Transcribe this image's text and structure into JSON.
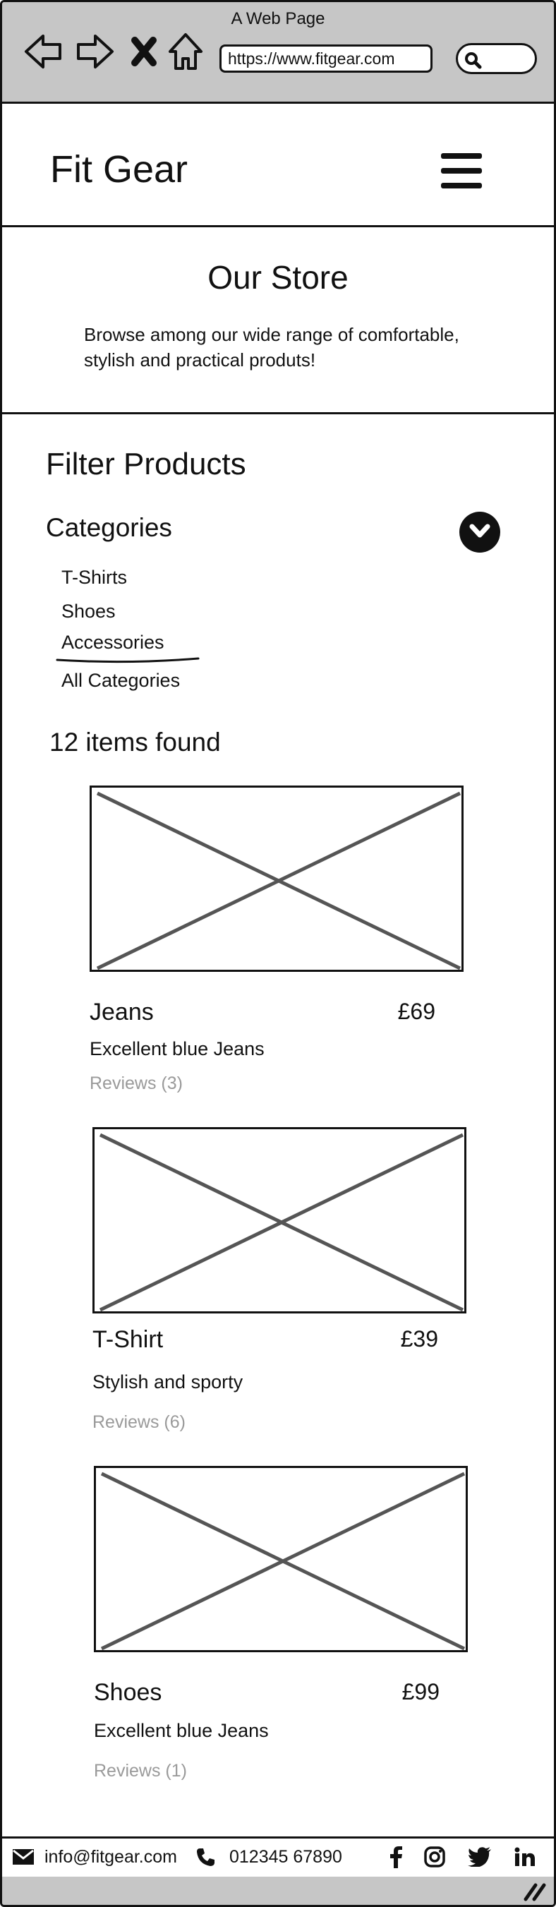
{
  "browser": {
    "window_title": "A Web Page",
    "url": "https://www.fitgear.com"
  },
  "header": {
    "brand": "Fit Gear"
  },
  "hero": {
    "title": "Our Store",
    "text": "Browse among our wide range of comfortable, stylish and practical produts!"
  },
  "filter": {
    "title": "Filter Products",
    "categories_label": "Categories",
    "categories": [
      "T-Shirts",
      "Shoes",
      "Accessories",
      "All Categories"
    ],
    "selected": "Accessories"
  },
  "results": {
    "count_text": "12 items found"
  },
  "products": [
    {
      "name": "Jeans",
      "price": "£69",
      "description": "Excellent blue Jeans",
      "reviews": "Reviews (3)"
    },
    {
      "name": "T-Shirt",
      "price": "£39",
      "description": "Stylish and sporty",
      "reviews": "Reviews (6)"
    },
    {
      "name": "Shoes",
      "price": "£99",
      "description": "Excellent blue Jeans",
      "reviews": "Reviews (1)"
    }
  ],
  "footer": {
    "email": "info@fitgear.com",
    "phone": "012345 67890",
    "social_icons": [
      "facebook-icon",
      "instagram-icon",
      "twitter-icon",
      "linkedin-icon"
    ]
  }
}
